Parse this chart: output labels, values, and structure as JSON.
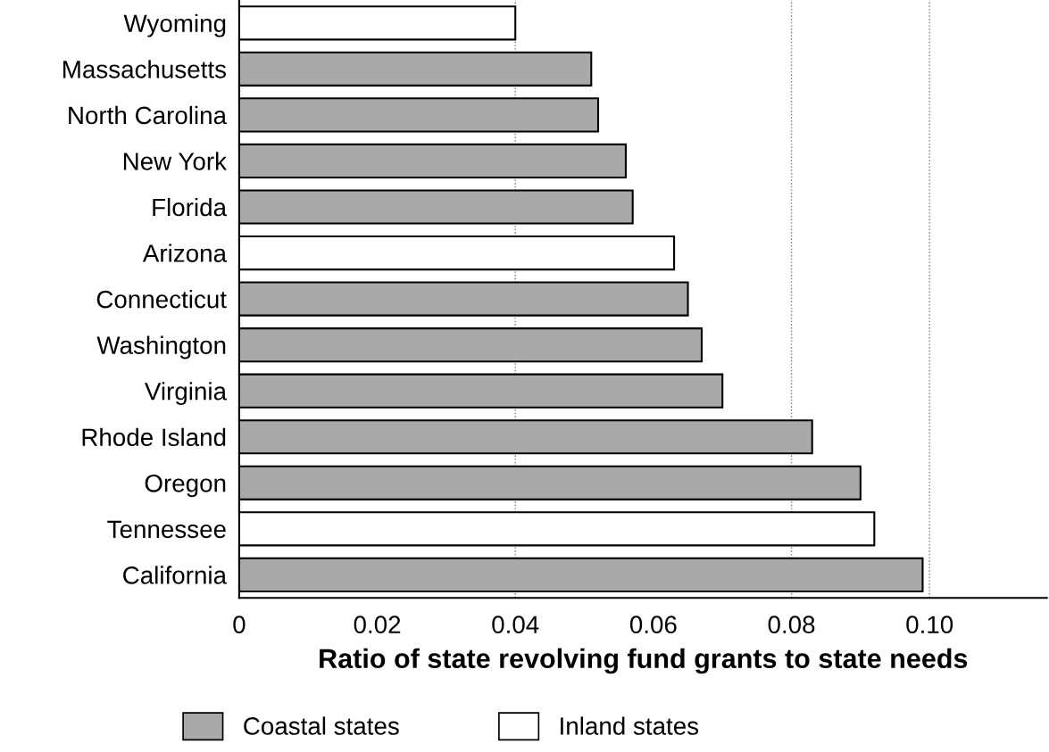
{
  "chart_data": {
    "type": "bar",
    "orientation": "horizontal",
    "xlabel": "Ratio of state revolving fund grants to state needs",
    "categories": [
      "Wyoming",
      "Massachusetts",
      "North Carolina",
      "New York",
      "Florida",
      "Arizona",
      "Connecticut",
      "Washington",
      "Virginia",
      "Rhode Island",
      "Oregon",
      "Tennessee",
      "California"
    ],
    "series": [
      {
        "name": "Coastal states",
        "color": "#a9a9a9",
        "values": [
          null,
          0.051,
          0.052,
          0.056,
          0.057,
          null,
          0.065,
          0.067,
          0.07,
          0.083,
          0.09,
          null,
          0.099
        ]
      },
      {
        "name": "Inland states",
        "color": "#ffffff",
        "values": [
          0.04,
          null,
          null,
          null,
          null,
          0.063,
          null,
          null,
          null,
          null,
          null,
          0.092,
          null
        ]
      }
    ],
    "xlim": [
      0,
      0.117
    ],
    "xticks": [
      0,
      0.02,
      0.04,
      0.06,
      0.08,
      {
        "value": 0.1,
        "label": "0.10"
      }
    ],
    "ref_lines": [
      {
        "axis": "x",
        "value": 0.04,
        "line_style": "dotted",
        "color": "#777777"
      },
      {
        "axis": "x",
        "value": 0.08,
        "line_style": "dotted",
        "color": "#777777"
      },
      {
        "axis": "x",
        "value": 0.1,
        "line_style": "dotted",
        "color": "#777777"
      }
    ],
    "grid": false,
    "legend": "bottom"
  }
}
